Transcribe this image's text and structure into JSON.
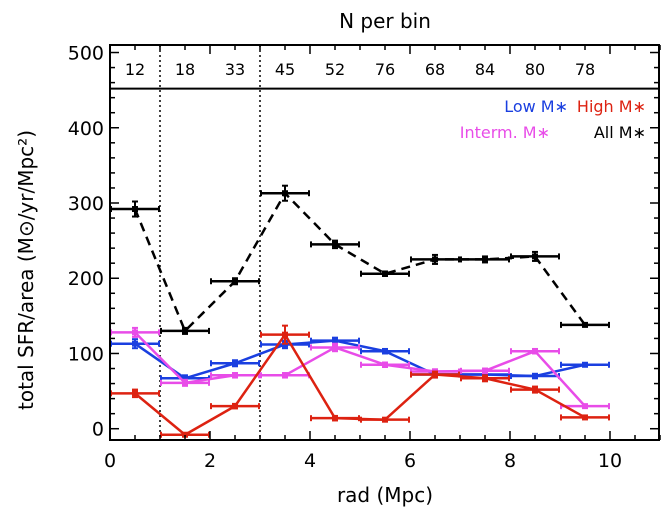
{
  "chart_data": {
    "type": "line",
    "top_title": "N per bin",
    "xlabel": "rad (Mpc)",
    "ylabel": "total SFR/area (M⊙/yr/Mpc²)",
    "xlim": [
      0,
      11
    ],
    "ylim": [
      -15,
      510
    ],
    "x_ticks": [
      0,
      2,
      4,
      6,
      8,
      10
    ],
    "y_ticks": [
      0,
      100,
      200,
      300,
      400,
      500
    ],
    "bin_separators": [
      1,
      3
    ],
    "count_separator_y": 452,
    "bin_counts": [
      {
        "x": 0.5,
        "n": "12"
      },
      {
        "x": 1.5,
        "n": "18"
      },
      {
        "x": 2.5,
        "n": "33"
      },
      {
        "x": 3.5,
        "n": "45"
      },
      {
        "x": 4.5,
        "n": "52"
      },
      {
        "x": 5.5,
        "n": "76"
      },
      {
        "x": 6.5,
        "n": "68"
      },
      {
        "x": 7.5,
        "n": "84"
      },
      {
        "x": 8.5,
        "n": "80"
      },
      {
        "x": 9.5,
        "n": "78"
      }
    ],
    "x_bin_edges": [
      [
        0,
        1
      ],
      [
        1,
        2
      ],
      [
        2,
        3
      ],
      [
        3,
        4
      ],
      [
        4,
        5
      ],
      [
        5,
        6
      ],
      [
        6,
        7
      ],
      [
        7,
        8
      ],
      [
        8,
        9
      ],
      [
        9,
        10
      ]
    ],
    "x": [
      0.5,
      1.5,
      2.5,
      3.5,
      4.5,
      5.5,
      6.5,
      7.5,
      8.5,
      9.5
    ],
    "series": [
      {
        "name": "All M∗",
        "color": "#000000",
        "dashed": true,
        "values": [
          292,
          130,
          196,
          313,
          245,
          206,
          225,
          225,
          229,
          138
        ],
        "errors": [
          10,
          4,
          4,
          10,
          5,
          3,
          6,
          4,
          6,
          2
        ]
      },
      {
        "name": "Low M∗",
        "color": "#1a3fe0",
        "dashed": false,
        "values": [
          113,
          67,
          87,
          112,
          117,
          103,
          72,
          72,
          70,
          85
        ],
        "errors": [
          6,
          4,
          4,
          5,
          4,
          3,
          4,
          3,
          3,
          2
        ]
      },
      {
        "name": "Interm. M∗",
        "color": "#e84ce8",
        "dashed": false,
        "values": [
          128,
          61,
          71,
          71,
          108,
          85,
          76,
          77,
          103,
          30
        ],
        "errors": [
          6,
          4,
          3,
          3,
          5,
          3,
          3,
          3,
          3,
          2
        ]
      },
      {
        "name": "High M∗",
        "color": "#dd2211",
        "dashed": false,
        "values": [
          47,
          -8,
          30,
          125,
          14,
          12,
          72,
          67,
          52,
          15
        ],
        "errors": [
          5,
          2,
          3,
          12,
          3,
          2,
          4,
          4,
          4,
          2
        ]
      }
    ],
    "legend": [
      {
        "label": "Low M∗",
        "color": "#1a3fe0"
      },
      {
        "label": "High M∗",
        "color": "#dd2211"
      },
      {
        "label": "Interm. M∗",
        "color": "#e84ce8"
      },
      {
        "label": "All M∗",
        "color": "#000000"
      }
    ],
    "legend_position": "top-right",
    "grid": false
  }
}
